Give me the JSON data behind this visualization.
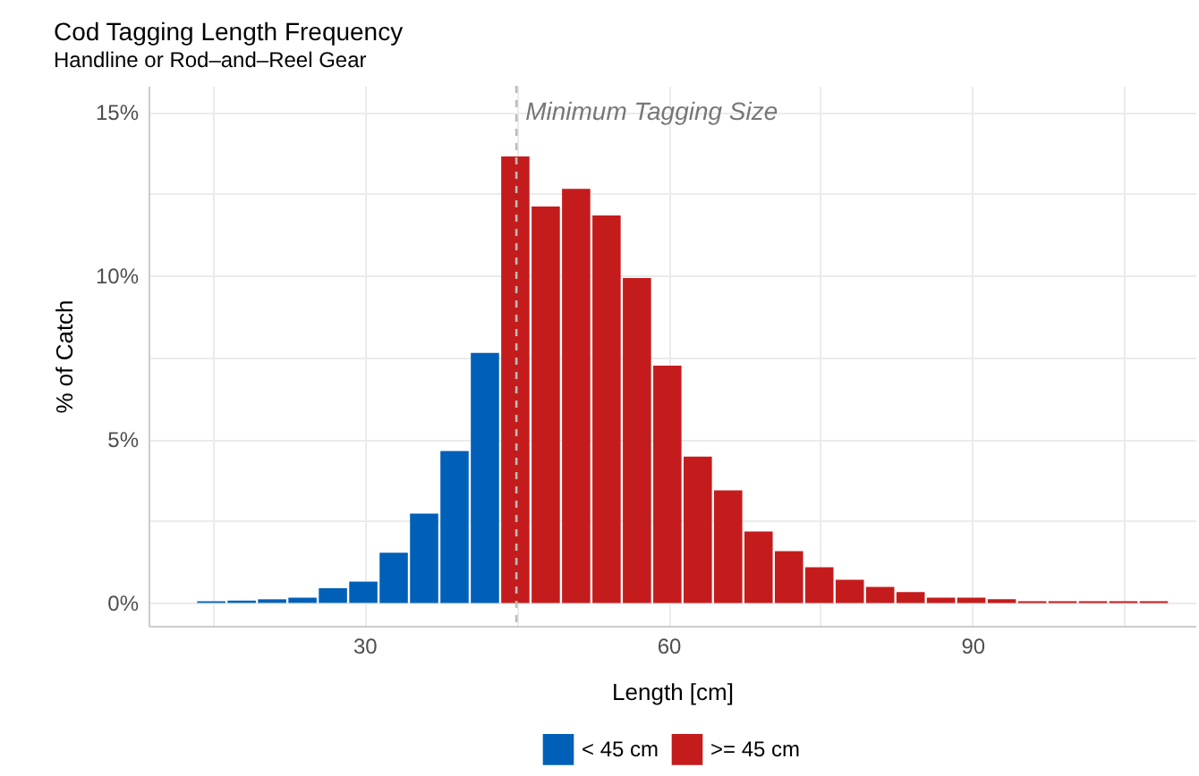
{
  "chart_data": {
    "type": "histogram",
    "title": "Cod Tagging Length Frequency",
    "subtitle": "Handline or Rod–and–Reel Gear",
    "xlabel": "Length [cm]",
    "ylabel": "% of Catch",
    "bins": [
      13.5,
      16.5,
      19.5,
      22.5,
      25.5,
      28.5,
      31.5,
      34.5,
      37.5,
      40.5,
      43.5,
      46.5,
      49.5,
      52.5,
      55.5,
      58.5,
      61.5,
      64.5,
      67.5,
      70.5,
      73.5,
      76.5,
      79.5,
      82.5,
      85.5,
      88.5,
      91.5,
      94.5,
      97.5,
      100.5,
      103.5,
      106.5,
      109.5
    ],
    "series": [
      {
        "name": "< 45 cm",
        "color": "#0060b8",
        "values": [
          0.05,
          0.07,
          0.11,
          0.16,
          0.45,
          0.65,
          1.53,
          2.73,
          4.64,
          7.64,
          null,
          null,
          null,
          null,
          null,
          null,
          null,
          null,
          null,
          null,
          null,
          null,
          null,
          null,
          null,
          null,
          null,
          null,
          null,
          null,
          null,
          null
        ]
      },
      {
        "name": ">= 45 cm",
        "color": "#c41c1c",
        "values": [
          null,
          null,
          null,
          null,
          null,
          null,
          null,
          null,
          null,
          null,
          13.64,
          12.11,
          12.65,
          11.84,
          9.93,
          7.25,
          4.47,
          3.44,
          2.18,
          1.58,
          1.09,
          0.71,
          0.49,
          0.33,
          0.16,
          0.16,
          0.11,
          0.05,
          0.05,
          0.05,
          0.05,
          0.05
        ]
      }
    ],
    "xlim": [
      8.7,
      112
    ],
    "xticks": [
      {
        "value": 15,
        "label": null
      },
      30,
      {
        "value": 45,
        "label": null
      },
      60,
      {
        "value": 75,
        "label": null
      },
      90,
      {
        "value": 105,
        "label": null
      }
    ],
    "ylim": [
      -0.7,
      15.8
    ],
    "yticks": [
      {
        "value": 0,
        "label": "0%"
      },
      {
        "value": 2.5,
        "label": null
      },
      {
        "value": 5,
        "label": "5%"
      },
      {
        "value": 7.5,
        "label": null
      },
      {
        "value": 10,
        "label": "10%"
      },
      {
        "value": 12.5,
        "label": null
      },
      {
        "value": 15,
        "label": "15%"
      }
    ],
    "ref_lines": [
      {
        "axis": "x",
        "value": 45,
        "label": "Minimum Tagging Size",
        "color": "#bbbbbb",
        "line_style": "dashed"
      }
    ],
    "grid": true,
    "legend": "bottom"
  }
}
